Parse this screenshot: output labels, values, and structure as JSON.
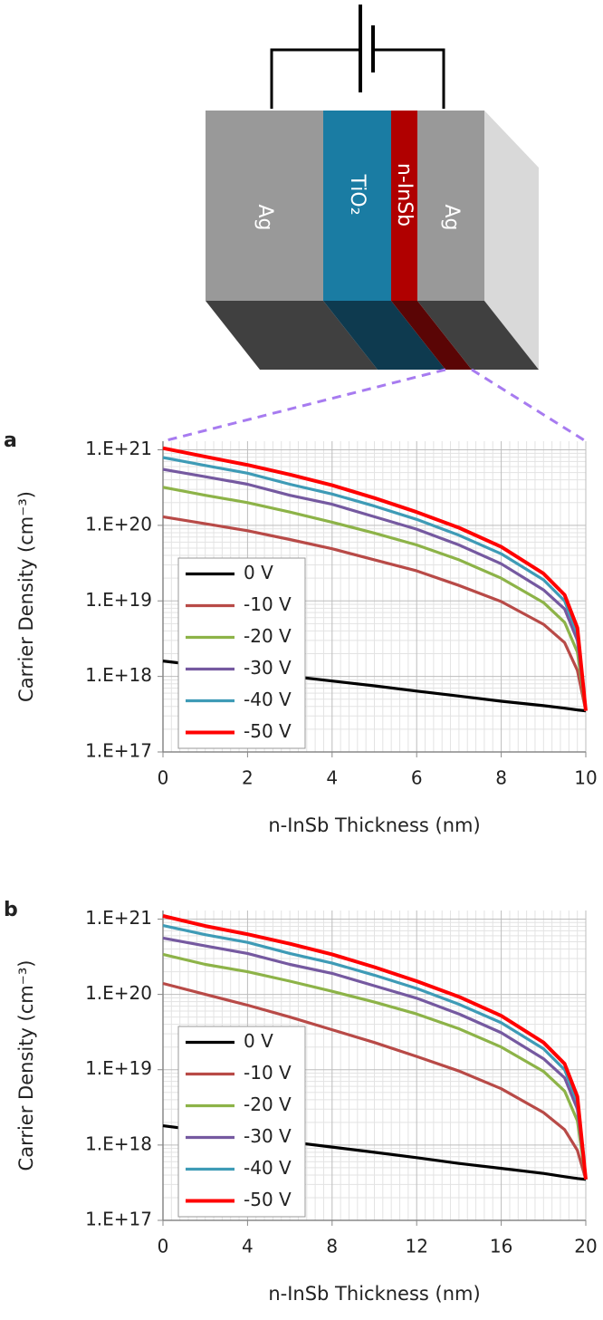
{
  "diagram": {
    "layers": [
      "Ag",
      "TiO₂",
      "n-InSb",
      "Ag"
    ]
  },
  "chart_data": [
    {
      "type": "line",
      "panel_label": "a",
      "x_label": "n-InSb Thickness (nm)",
      "y_label": "Carrier Density (cm⁻³)",
      "log_scale": true,
      "grid": true,
      "legend": "lower left",
      "x": [
        0,
        1,
        2,
        3,
        4,
        5,
        6,
        7,
        8,
        9,
        9.5,
        9.8,
        10
      ],
      "xlim": [
        0,
        10
      ],
      "xticks": [
        0,
        2,
        4,
        6,
        8,
        10
      ],
      "ylim": [
        1e+17,
        1.3e+21
      ],
      "yticks": [
        {
          "value": 1e+17,
          "label": "1.E+17"
        },
        {
          "value": 1e+18,
          "label": "1.E+18"
        },
        {
          "value": 1e+19,
          "label": "1.E+19"
        },
        {
          "value": 1e+20,
          "label": "1.E+20"
        },
        {
          "value": 1e+21,
          "label": "1.E+21"
        }
      ],
      "series": [
        {
          "name": "0 V",
          "color": "#000000",
          "values": [
            1.6e+18,
            1.37e+18,
            1.18e+18,
            1.01e+18,
            8.7e+17,
            7.5e+17,
            6.4e+17,
            5.5e+17,
            4.7e+17,
            4.1e+17,
            3.8e+17,
            3.6e+17,
            3.5e+17
          ]
        },
        {
          "name": "-10 V",
          "color": "#b84a47",
          "values": [
            1.3e+20,
            1.05e+20,
            8.5e+19,
            6.5e+19,
            4.9e+19,
            3.5e+19,
            2.5e+19,
            1.6e+19,
            9.8e+18,
            4.9e+18,
            2.8e+18,
            1.2e+18,
            3.5e+17
          ]
        },
        {
          "name": "-20 V",
          "color": "#8db348",
          "values": [
            3.2e+20,
            2.5e+20,
            2e+20,
            1.5e+20,
            1.1e+20,
            7.9e+19,
            5.5e+19,
            3.5e+19,
            2e+19,
            9.5e+18,
            5.2e+18,
            2.1e+18,
            3.5e+17
          ]
        },
        {
          "name": "-30 V",
          "color": "#7559a0",
          "values": [
            5.5e+20,
            4.4e+20,
            3.5e+20,
            2.5e+20,
            1.9e+20,
            1.3e+20,
            8.9e+19,
            5.5e+19,
            3.1e+19,
            1.4e+19,
            7.8e+18,
            3e+18,
            3.5e+17
          ]
        },
        {
          "name": "-40 V",
          "color": "#3e9bb6",
          "values": [
            7.9e+20,
            6.2e+20,
            4.9e+20,
            3.5e+20,
            2.6e+20,
            1.8e+20,
            1.2e+20,
            7.4e+19,
            4.2e+19,
            1.9e+19,
            1e+19,
            3.7e+18,
            3.5e+17
          ]
        },
        {
          "name": "-50 V",
          "color": "#ff0000",
          "values": [
            1.05e+21,
            8.1e+20,
            6.3e+20,
            4.7e+20,
            3.4e+20,
            2.3e+20,
            1.5e+20,
            9.3e+19,
            5.2e+19,
            2.3e+19,
            1.2e+19,
            4.4e+18,
            3.5e+17
          ]
        }
      ]
    },
    {
      "type": "line",
      "panel_label": "b",
      "x_label": "n-InSb Thickness (nm)",
      "y_label": "Carrier Density (cm⁻³)",
      "log_scale": true,
      "grid": true,
      "legend": "lower left",
      "x": [
        0,
        2,
        4,
        6,
        8,
        10,
        12,
        14,
        16,
        18,
        19,
        19.6,
        20
      ],
      "xlim": [
        0,
        20
      ],
      "xticks": [
        0,
        4,
        8,
        12,
        16,
        20
      ],
      "ylim": [
        1e+17,
        1.3e+21
      ],
      "yticks": [
        {
          "value": 1e+17,
          "label": "1.E+17"
        },
        {
          "value": 1e+18,
          "label": "1.E+18"
        },
        {
          "value": 1e+19,
          "label": "1.E+19"
        },
        {
          "value": 1e+20,
          "label": "1.E+20"
        },
        {
          "value": 1e+21,
          "label": "1.E+21"
        }
      ],
      "series": [
        {
          "name": "0 V",
          "color": "#000000",
          "values": [
            1.8e+18,
            1.53e+18,
            1.3e+18,
            1.1e+18,
            9.4e+17,
            8e+17,
            6.8e+17,
            5.7e+17,
            4.9e+17,
            4.2e+17,
            3.8e+17,
            3.6e+17,
            3.5e+17
          ]
        },
        {
          "name": "-10 V",
          "color": "#b84a47",
          "values": [
            1.4e+20,
            1e+20,
            7.2e+19,
            5e+19,
            3.4e+19,
            2.3e+19,
            1.5e+19,
            9.6e+18,
            5.6e+18,
            2.7e+18,
            1.6e+18,
            8.5e+17,
            3.5e+17
          ]
        },
        {
          "name": "-20 V",
          "color": "#8db348",
          "values": [
            3.4e+20,
            2.5e+20,
            2e+20,
            1.5e+20,
            1.1e+20,
            7.9e+19,
            5.5e+19,
            3.5e+19,
            2e+19,
            9.5e+18,
            5.2e+18,
            2.1e+18,
            3.5e+17
          ]
        },
        {
          "name": "-30 V",
          "color": "#7559a0",
          "values": [
            5.6e+20,
            4.4e+20,
            3.5e+20,
            2.5e+20,
            1.9e+20,
            1.3e+20,
            8.9e+19,
            5.5e+19,
            3.1e+19,
            1.4e+19,
            7.8e+18,
            3e+18,
            3.5e+17
          ]
        },
        {
          "name": "-40 V",
          "color": "#3e9bb6",
          "values": [
            8.2e+20,
            6.2e+20,
            4.9e+20,
            3.5e+20,
            2.6e+20,
            1.8e+20,
            1.2e+20,
            7.4e+19,
            4.2e+19,
            1.9e+19,
            1e+19,
            3.7e+18,
            3.5e+17
          ]
        },
        {
          "name": "-50 V",
          "color": "#ff0000",
          "values": [
            1.1e+21,
            8.1e+20,
            6.3e+20,
            4.7e+20,
            3.4e+20,
            2.3e+20,
            1.5e+20,
            9.3e+19,
            5.2e+19,
            2.3e+19,
            1.2e+19,
            4.4e+18,
            3.5e+17
          ]
        }
      ]
    }
  ]
}
